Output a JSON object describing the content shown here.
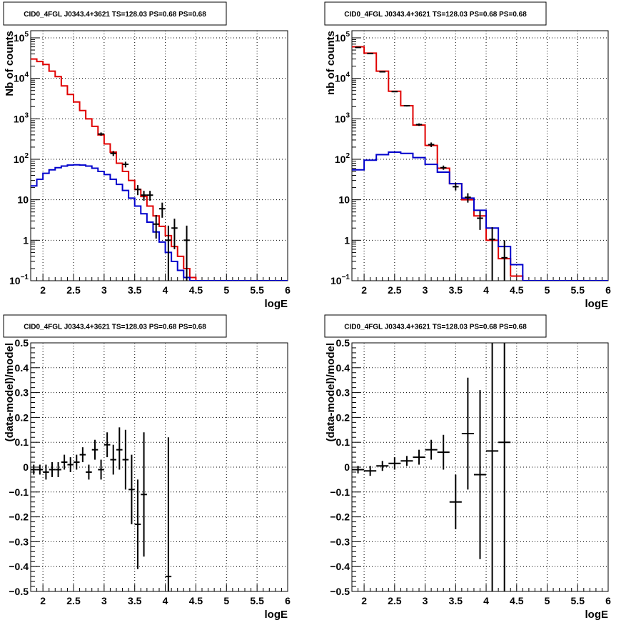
{
  "panels_meta": {
    "title": "CID0_4FGL J0343.4+3621 TS=128.03 PS=0.68 PS=0.68"
  },
  "chart_data": [
    {
      "type": "line",
      "title": "CID0_4FGL J0343.4+3621 TS=128.03 PS=0.68 PS=0.68",
      "xlabel": "logE",
      "ylabel": "Nb of counts",
      "log_y": true,
      "xlim": [
        1.8,
        6.0
      ],
      "ylim": [
        0.1,
        150000
      ],
      "grid": true,
      "bin_edges": [
        1.8,
        1.9,
        2.0,
        2.1,
        2.2,
        2.3,
        2.4,
        2.5,
        2.6,
        2.7,
        2.8,
        2.9,
        3.0,
        3.1,
        3.2,
        3.3,
        3.4,
        3.5,
        3.6,
        3.7,
        3.8,
        3.9,
        4.0,
        4.1,
        4.2,
        4.3,
        4.4,
        4.5,
        4.6,
        4.7,
        4.8,
        4.9,
        5.0,
        5.1,
        5.2,
        5.3,
        5.4,
        5.5,
        5.6,
        5.7,
        5.8,
        5.9,
        6.0
      ],
      "series": [
        {
          "color": "#e00000",
          "style": "hist",
          "values": [
            30000,
            26000,
            22000,
            15000,
            11000,
            6500,
            4000,
            2600,
            1600,
            1000,
            650,
            400,
            240,
            150,
            80,
            50,
            30,
            18,
            12,
            7,
            4,
            2.2,
            1.3,
            0.7,
            0.4,
            0.2,
            0.12,
            0.1,
            0.1,
            0.1,
            0.1,
            0.1,
            0.1,
            0.1,
            0.1,
            0.1,
            0.1,
            0.1,
            0.1,
            0.1,
            0.1,
            0.1
          ]
        },
        {
          "color": "#0000cc",
          "style": "hist",
          "values": [
            22,
            32,
            45,
            55,
            62,
            68,
            72,
            73,
            72,
            68,
            60,
            50,
            42,
            32,
            24,
            17,
            11,
            7,
            4.5,
            2.8,
            1.6,
            0.9,
            0.5,
            0.3,
            0.18,
            0.12,
            0.1,
            0.1,
            0.1,
            0.1,
            0.1,
            0.1,
            0.1,
            0.1,
            0.1,
            0.1,
            0.1,
            0.1,
            0.1,
            0.1,
            0.1,
            0.1
          ]
        },
        {
          "color": "#000000",
          "style": "points",
          "points": [
            {
              "x": 2.95,
              "y": 420,
              "lo": 380,
              "hi": 460
            },
            {
              "x": 3.15,
              "y": 140,
              "lo": 120,
              "hi": 160
            },
            {
              "x": 3.35,
              "y": 75,
              "lo": 63,
              "hi": 87
            },
            {
              "x": 3.55,
              "y": 18,
              "lo": 13,
              "hi": 23
            },
            {
              "x": 3.65,
              "y": 13,
              "lo": 9.5,
              "hi": 16.6
            },
            {
              "x": 3.75,
              "y": 13,
              "lo": 9.5,
              "hi": 16.6
            },
            {
              "x": 3.85,
              "y": 2.5,
              "lo": 1.1,
              "hi": 4.2
            },
            {
              "x": 3.95,
              "y": 6,
              "lo": 3.6,
              "hi": 8.5
            },
            {
              "x": 4.05,
              "y": 1,
              "lo": 0.1,
              "hi": 2.3
            },
            {
              "x": 4.15,
              "y": 2,
              "lo": 0.6,
              "hi": 3.4
            },
            {
              "x": 4.35,
              "y": 1,
              "lo": 0.1,
              "hi": 2.3
            }
          ]
        }
      ],
      "x_ticks": [
        2,
        2.5,
        3,
        3.5,
        4,
        4.5,
        5,
        5.5,
        6
      ],
      "x_tick_labels": [
        "2",
        "2.5",
        "3",
        "3.5",
        "4",
        "4.5",
        "5",
        "5.5",
        "6"
      ],
      "y_ticks": [
        0.1,
        1,
        10,
        100,
        1000,
        10000,
        100000
      ],
      "y_tick_labels": [
        {
          "b": "10",
          "e": "−1"
        },
        {
          "b": "1",
          "e": ""
        },
        {
          "b": "10",
          "e": ""
        },
        {
          "b": "10",
          "e": "2"
        },
        {
          "b": "10",
          "e": "3"
        },
        {
          "b": "10",
          "e": "4"
        },
        {
          "b": "10",
          "e": "5"
        }
      ]
    },
    {
      "type": "line",
      "title": "CID0_4FGL J0343.4+3621 TS=128.03 PS=0.68 PS=0.68",
      "xlabel": "logE",
      "ylabel": "nb of counts",
      "log_y": true,
      "xlim": [
        1.8,
        6.0
      ],
      "ylim": [
        0.1,
        150000
      ],
      "grid": true,
      "bin_edges": [
        1.8,
        2.0,
        2.2,
        2.4,
        2.6,
        2.8,
        3.0,
        3.2,
        3.4,
        3.6,
        3.8,
        4.0,
        4.2,
        4.4,
        4.6,
        4.8,
        5.0,
        5.2,
        5.4,
        5.6,
        5.8,
        6.0
      ],
      "series": [
        {
          "color": "#e00000",
          "style": "hist",
          "values": [
            60000,
            42000,
            15000,
            4800,
            2100,
            700,
            220,
            60,
            25,
            10,
            4,
            1,
            0.35,
            0.13,
            0.1,
            0.1,
            0.1,
            0.1,
            0.1,
            0.1,
            0.1
          ]
        },
        {
          "color": "#0000cc",
          "style": "hist",
          "values": [
            55,
            95,
            130,
            150,
            140,
            110,
            75,
            48,
            25,
            11,
            5.5,
            2,
            0.7,
            0.25,
            0.1,
            0.1,
            0.1,
            0.1,
            0.1,
            0.1,
            0.1
          ]
        },
        {
          "color": "#000000",
          "style": "points",
          "points": [
            {
              "x": 1.9,
              "y": 58000,
              "lo": 57000,
              "hi": 59000
            },
            {
              "x": 2.1,
              "y": 41000,
              "lo": 40300,
              "hi": 41700
            },
            {
              "x": 2.3,
              "y": 14500,
              "lo": 14100,
              "hi": 14900
            },
            {
              "x": 2.5,
              "y": 4700,
              "lo": 4560,
              "hi": 4840
            },
            {
              "x": 2.7,
              "y": 2100,
              "lo": 2010,
              "hi": 2190
            },
            {
              "x": 2.9,
              "y": 720,
              "lo": 670,
              "hi": 770
            },
            {
              "x": 3.1,
              "y": 230,
              "lo": 200,
              "hi": 260
            },
            {
              "x": 3.3,
              "y": 62,
              "lo": 55,
              "hi": 70
            },
            {
              "x": 3.5,
              "y": 21,
              "lo": 17,
              "hi": 26
            },
            {
              "x": 3.7,
              "y": 11.5,
              "lo": 8.5,
              "hi": 14.5
            },
            {
              "x": 3.9,
              "y": 3.5,
              "lo": 1.8,
              "hi": 5.3
            },
            {
              "x": 4.1,
              "y": 1.05,
              "lo": 0.1,
              "hi": 2.1
            },
            {
              "x": 4.3,
              "y": 0.37,
              "lo": 0.1,
              "hi": 1.0
            }
          ]
        }
      ],
      "x_ticks": [
        2,
        2.5,
        3,
        3.5,
        4,
        4.5,
        5,
        5.5,
        6
      ],
      "x_tick_labels": [
        "2",
        "2.5",
        "3",
        "3.5",
        "4",
        "4.5",
        "5",
        "5.5",
        "6"
      ],
      "y_ticks": [
        0.1,
        1,
        10,
        100,
        1000,
        10000,
        100000
      ],
      "y_tick_labels": [
        {
          "b": "10",
          "e": "−1"
        },
        {
          "b": "1",
          "e": ""
        },
        {
          "b": "10",
          "e": ""
        },
        {
          "b": "10",
          "e": "2"
        },
        {
          "b": "10",
          "e": "3"
        },
        {
          "b": "10",
          "e": "4"
        },
        {
          "b": "10",
          "e": "5"
        }
      ]
    },
    {
      "type": "scatter",
      "title": "CID0_4FGL J0343.4+3621 TS=128.03 PS=0.68 PS=0.68",
      "xlabel": "logE",
      "ylabel": "(data-model)/model",
      "log_y": false,
      "xlim": [
        1.8,
        6.0
      ],
      "ylim": [
        -0.5,
        0.5
      ],
      "grid": true,
      "series": [
        {
          "color": "#000000",
          "style": "points",
          "half_width": 0.05,
          "points": [
            {
              "x": 1.85,
              "y": -0.01,
              "lo": -0.03,
              "hi": 0.01
            },
            {
              "x": 1.95,
              "y": -0.01,
              "lo": -0.03,
              "hi": 0.01
            },
            {
              "x": 2.05,
              "y": -0.02,
              "lo": -0.05,
              "hi": 0.01
            },
            {
              "x": 2.15,
              "y": -0.01,
              "lo": -0.04,
              "hi": 0.02
            },
            {
              "x": 2.25,
              "y": -0.01,
              "lo": -0.04,
              "hi": 0.02
            },
            {
              "x": 2.35,
              "y": 0.02,
              "lo": -0.01,
              "hi": 0.05
            },
            {
              "x": 2.45,
              "y": 0.01,
              "lo": -0.02,
              "hi": 0.04
            },
            {
              "x": 2.55,
              "y": 0.02,
              "lo": -0.01,
              "hi": 0.05
            },
            {
              "x": 2.65,
              "y": 0.05,
              "lo": 0.02,
              "hi": 0.08
            },
            {
              "x": 2.75,
              "y": -0.02,
              "lo": -0.05,
              "hi": 0.01
            },
            {
              "x": 2.85,
              "y": 0.07,
              "lo": 0.03,
              "hi": 0.11
            },
            {
              "x": 2.95,
              "y": -0.01,
              "lo": -0.05,
              "hi": 0.03
            },
            {
              "x": 3.05,
              "y": 0.09,
              "lo": 0.04,
              "hi": 0.14
            },
            {
              "x": 3.15,
              "y": 0.03,
              "lo": -0.03,
              "hi": 0.09
            },
            {
              "x": 3.25,
              "y": 0.07,
              "lo": -0.01,
              "hi": 0.16
            },
            {
              "x": 3.35,
              "y": 0.03,
              "lo": -0.09,
              "hi": 0.15
            },
            {
              "x": 3.45,
              "y": -0.09,
              "lo": -0.23,
              "hi": 0.05
            },
            {
              "x": 3.55,
              "y": -0.23,
              "lo": -0.41,
              "hi": -0.05
            },
            {
              "x": 3.65,
              "y": -0.11,
              "lo": -0.36,
              "hi": 0.14
            },
            {
              "x": 4.05,
              "y": -0.44,
              "lo": -0.5,
              "hi": 0.12
            }
          ]
        }
      ],
      "x_ticks": [
        2,
        2.5,
        3,
        3.5,
        4,
        4.5,
        5,
        5.5,
        6
      ],
      "x_tick_labels": [
        "2",
        "2.5",
        "3",
        "3.5",
        "4",
        "4.5",
        "5",
        "5.5",
        "6"
      ],
      "y_ticks": [
        -0.5,
        -0.4,
        -0.3,
        -0.2,
        -0.1,
        0,
        0.1,
        0.2,
        0.3,
        0.4,
        0.5
      ],
      "y_tick_labels": [
        "−0.5",
        "−0.4",
        "−0.3",
        "−0.2",
        "−0.1",
        "0",
        "0.1",
        "0.2",
        "0.3",
        "0.4",
        "0.5"
      ]
    },
    {
      "type": "scatter",
      "title": "CID0_4FGL J0343.4+3621 TS=128.03 PS=0.68 PS=0.68",
      "xlabel": "logE",
      "ylabel": "(data-model)/model",
      "log_y": false,
      "xlim": [
        1.8,
        6.0
      ],
      "ylim": [
        -0.5,
        0.5
      ],
      "grid": true,
      "series": [
        {
          "color": "#000000",
          "style": "points",
          "half_width": 0.1,
          "points": [
            {
              "x": 1.9,
              "y": -0.01,
              "lo": -0.025,
              "hi": 0.005
            },
            {
              "x": 2.1,
              "y": -0.015,
              "lo": -0.035,
              "hi": 0.005
            },
            {
              "x": 2.3,
              "y": 0.005,
              "lo": -0.015,
              "hi": 0.025
            },
            {
              "x": 2.5,
              "y": 0.015,
              "lo": -0.01,
              "hi": 0.04
            },
            {
              "x": 2.7,
              "y": 0.025,
              "lo": 0.005,
              "hi": 0.045
            },
            {
              "x": 2.9,
              "y": 0.04,
              "lo": 0.01,
              "hi": 0.07
            },
            {
              "x": 3.1,
              "y": 0.07,
              "lo": 0.03,
              "hi": 0.11
            },
            {
              "x": 3.3,
              "y": 0.06,
              "lo": -0.01,
              "hi": 0.13
            },
            {
              "x": 3.5,
              "y": -0.14,
              "lo": -0.25,
              "hi": -0.03
            },
            {
              "x": 3.7,
              "y": 0.135,
              "lo": -0.09,
              "hi": 0.36
            },
            {
              "x": 3.9,
              "y": -0.03,
              "lo": -0.37,
              "hi": 0.31
            },
            {
              "x": 4.1,
              "y": 0.065,
              "lo": -0.5,
              "hi": 0.5
            },
            {
              "x": 4.3,
              "y": 0.1,
              "lo": -0.5,
              "hi": 0.5
            }
          ]
        }
      ],
      "x_ticks": [
        2,
        2.5,
        3,
        3.5,
        4,
        4.5,
        5,
        5.5,
        6
      ],
      "x_tick_labels": [
        "2",
        "2.5",
        "3",
        "3.5",
        "4",
        "4.5",
        "5",
        "5.5",
        "6"
      ],
      "y_ticks": [
        -0.5,
        -0.4,
        -0.3,
        -0.2,
        -0.1,
        0,
        0.1,
        0.2,
        0.3,
        0.4,
        0.5
      ],
      "y_tick_labels": [
        "−0.5",
        "−0.4",
        "−0.3",
        "−0.2",
        "−0.1",
        "0",
        "0.1",
        "0.2",
        "0.3",
        "0.4",
        "0.5"
      ]
    }
  ]
}
